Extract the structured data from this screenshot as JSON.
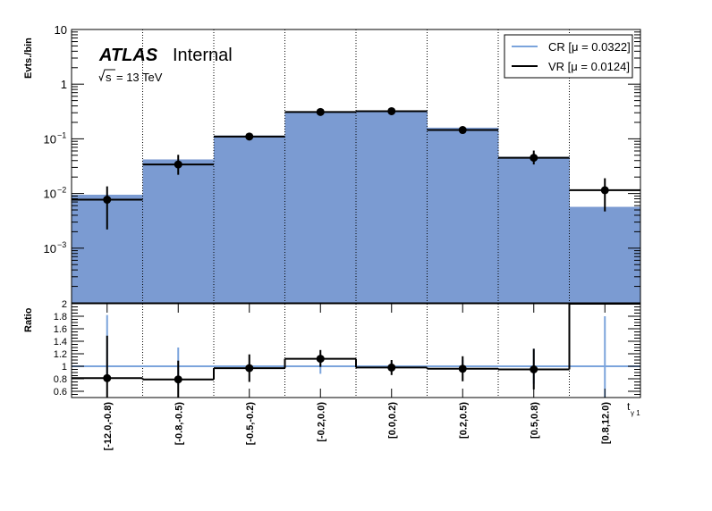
{
  "chart_data": {
    "type": "histogram",
    "categories": [
      "[-12.0,-0.8)",
      "[-0.8,-0.5)",
      "[-0.5,-0.2)",
      "[-0.2,0.0)",
      "[0.0,0.2)",
      "[0.2,0.5)",
      "[0.5,0.8)",
      "[0.8,12.0)"
    ],
    "xlabel_main": "t",
    "xlabel_sub": "γ 1",
    "annotation": {
      "atlas": "ATLAS",
      "status": "Internal",
      "sqrt_s": "s",
      "energy": "= 13 TeV"
    },
    "top_panel": {
      "ylabel": "Evts./bin",
      "yscale": "log",
      "ylim": [
        0.0001,
        10
      ],
      "yticks": [
        {
          "value": 10,
          "base": "10",
          "exp": ""
        },
        {
          "value": 1,
          "base": "1",
          "exp": ""
        },
        {
          "value": 0.1,
          "base": "10",
          "exp": "−1"
        },
        {
          "value": 0.01,
          "base": "10",
          "exp": "−2"
        },
        {
          "value": 0.001,
          "base": "10",
          "exp": "−3"
        }
      ],
      "series": [
        {
          "name": "CR [μ = 0.0322]",
          "style": "filled-histogram",
          "color": "#7b9bd2",
          "legend_color": "#7ba4dc",
          "values": [
            0.0095,
            0.042,
            0.115,
            0.31,
            0.33,
            0.16,
            0.047,
            0.0057
          ]
        },
        {
          "name": "VR [μ = 0.0124]",
          "style": "line-histogram-with-points",
          "color": "#000000",
          "values": [
            0.0077,
            0.034,
            0.11,
            0.31,
            0.32,
            0.145,
            0.045,
            0.0115
          ],
          "err_low": [
            0.0055,
            0.012,
            0.015,
            0.025,
            0.025,
            0.018,
            0.011,
            0.0068
          ],
          "err_high": [
            0.0058,
            0.017,
            0.018,
            0.03,
            0.03,
            0.02,
            0.016,
            0.0075
          ]
        }
      ]
    },
    "bottom_panel": {
      "ylabel": "Ratio",
      "ylim": [
        0.5,
        2.0
      ],
      "yticks": [
        "0.6",
        "0.8",
        "1",
        "1.2",
        "1.4",
        "1.6",
        "1.8",
        "2"
      ],
      "reference_line": 1.0,
      "reference_color": "#7ba4dc",
      "ratio": [
        0.81,
        0.79,
        0.97,
        1.12,
        0.98,
        0.96,
        0.95,
        2.0
      ],
      "ratio_err_low": [
        0.58,
        0.35,
        0.22,
        0.13,
        0.12,
        0.2,
        0.32,
        0
      ],
      "ratio_err_high": [
        0.68,
        0.3,
        0.22,
        0.14,
        0.12,
        0.2,
        0.33,
        0
      ],
      "reference_err_low": [
        0.22,
        0.3,
        0.07,
        0.12,
        0.08,
        0.1,
        0.28,
        0.5
      ],
      "reference_err_high": [
        0.82,
        0.3,
        0.05,
        0.1,
        0.08,
        0.1,
        0.28,
        0.8
      ]
    }
  }
}
